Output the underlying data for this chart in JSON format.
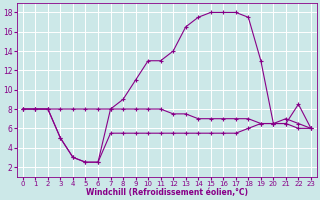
{
  "xlabel": "Windchill (Refroidissement éolien,°C)",
  "background_color": "#cce8e8",
  "grid_color": "#ffffff",
  "line_color": "#880088",
  "hours": [
    0,
    1,
    2,
    3,
    4,
    5,
    6,
    7,
    8,
    9,
    10,
    11,
    12,
    13,
    14,
    15,
    16,
    17,
    18,
    19,
    20,
    21,
    22,
    23
  ],
  "temp": [
    8,
    8,
    8,
    8,
    8,
    8,
    8,
    8,
    9,
    11,
    13,
    13,
    14,
    16.5,
    17.5,
    18,
    18,
    18,
    17.5,
    13,
    6.5,
    6.5,
    8.5,
    6
  ],
  "windchill": [
    8,
    8,
    8,
    5,
    3,
    2.5,
    2.5,
    8,
    8,
    8,
    8,
    8,
    7.5,
    7.5,
    7,
    7,
    7,
    7,
    7,
    6.5,
    6.5,
    7,
    6.5,
    6
  ],
  "feels_like": [
    8,
    8,
    8,
    5,
    3,
    2.5,
    2.5,
    5.5,
    5.5,
    5.5,
    5.5,
    5.5,
    5.5,
    5.5,
    5.5,
    5.5,
    5.5,
    5.5,
    6,
    6.5,
    6.5,
    6.5,
    6,
    6
  ],
  "xlim": [
    -0.5,
    23.5
  ],
  "ylim": [
    1,
    19
  ],
  "yticks": [
    2,
    4,
    6,
    8,
    10,
    12,
    14,
    16,
    18
  ],
  "xticks": [
    0,
    1,
    2,
    3,
    4,
    5,
    6,
    7,
    8,
    9,
    10,
    11,
    12,
    13,
    14,
    15,
    16,
    17,
    18,
    19,
    20,
    21,
    22,
    23
  ],
  "tick_fontsize": 5,
  "xlabel_fontsize": 5.5
}
